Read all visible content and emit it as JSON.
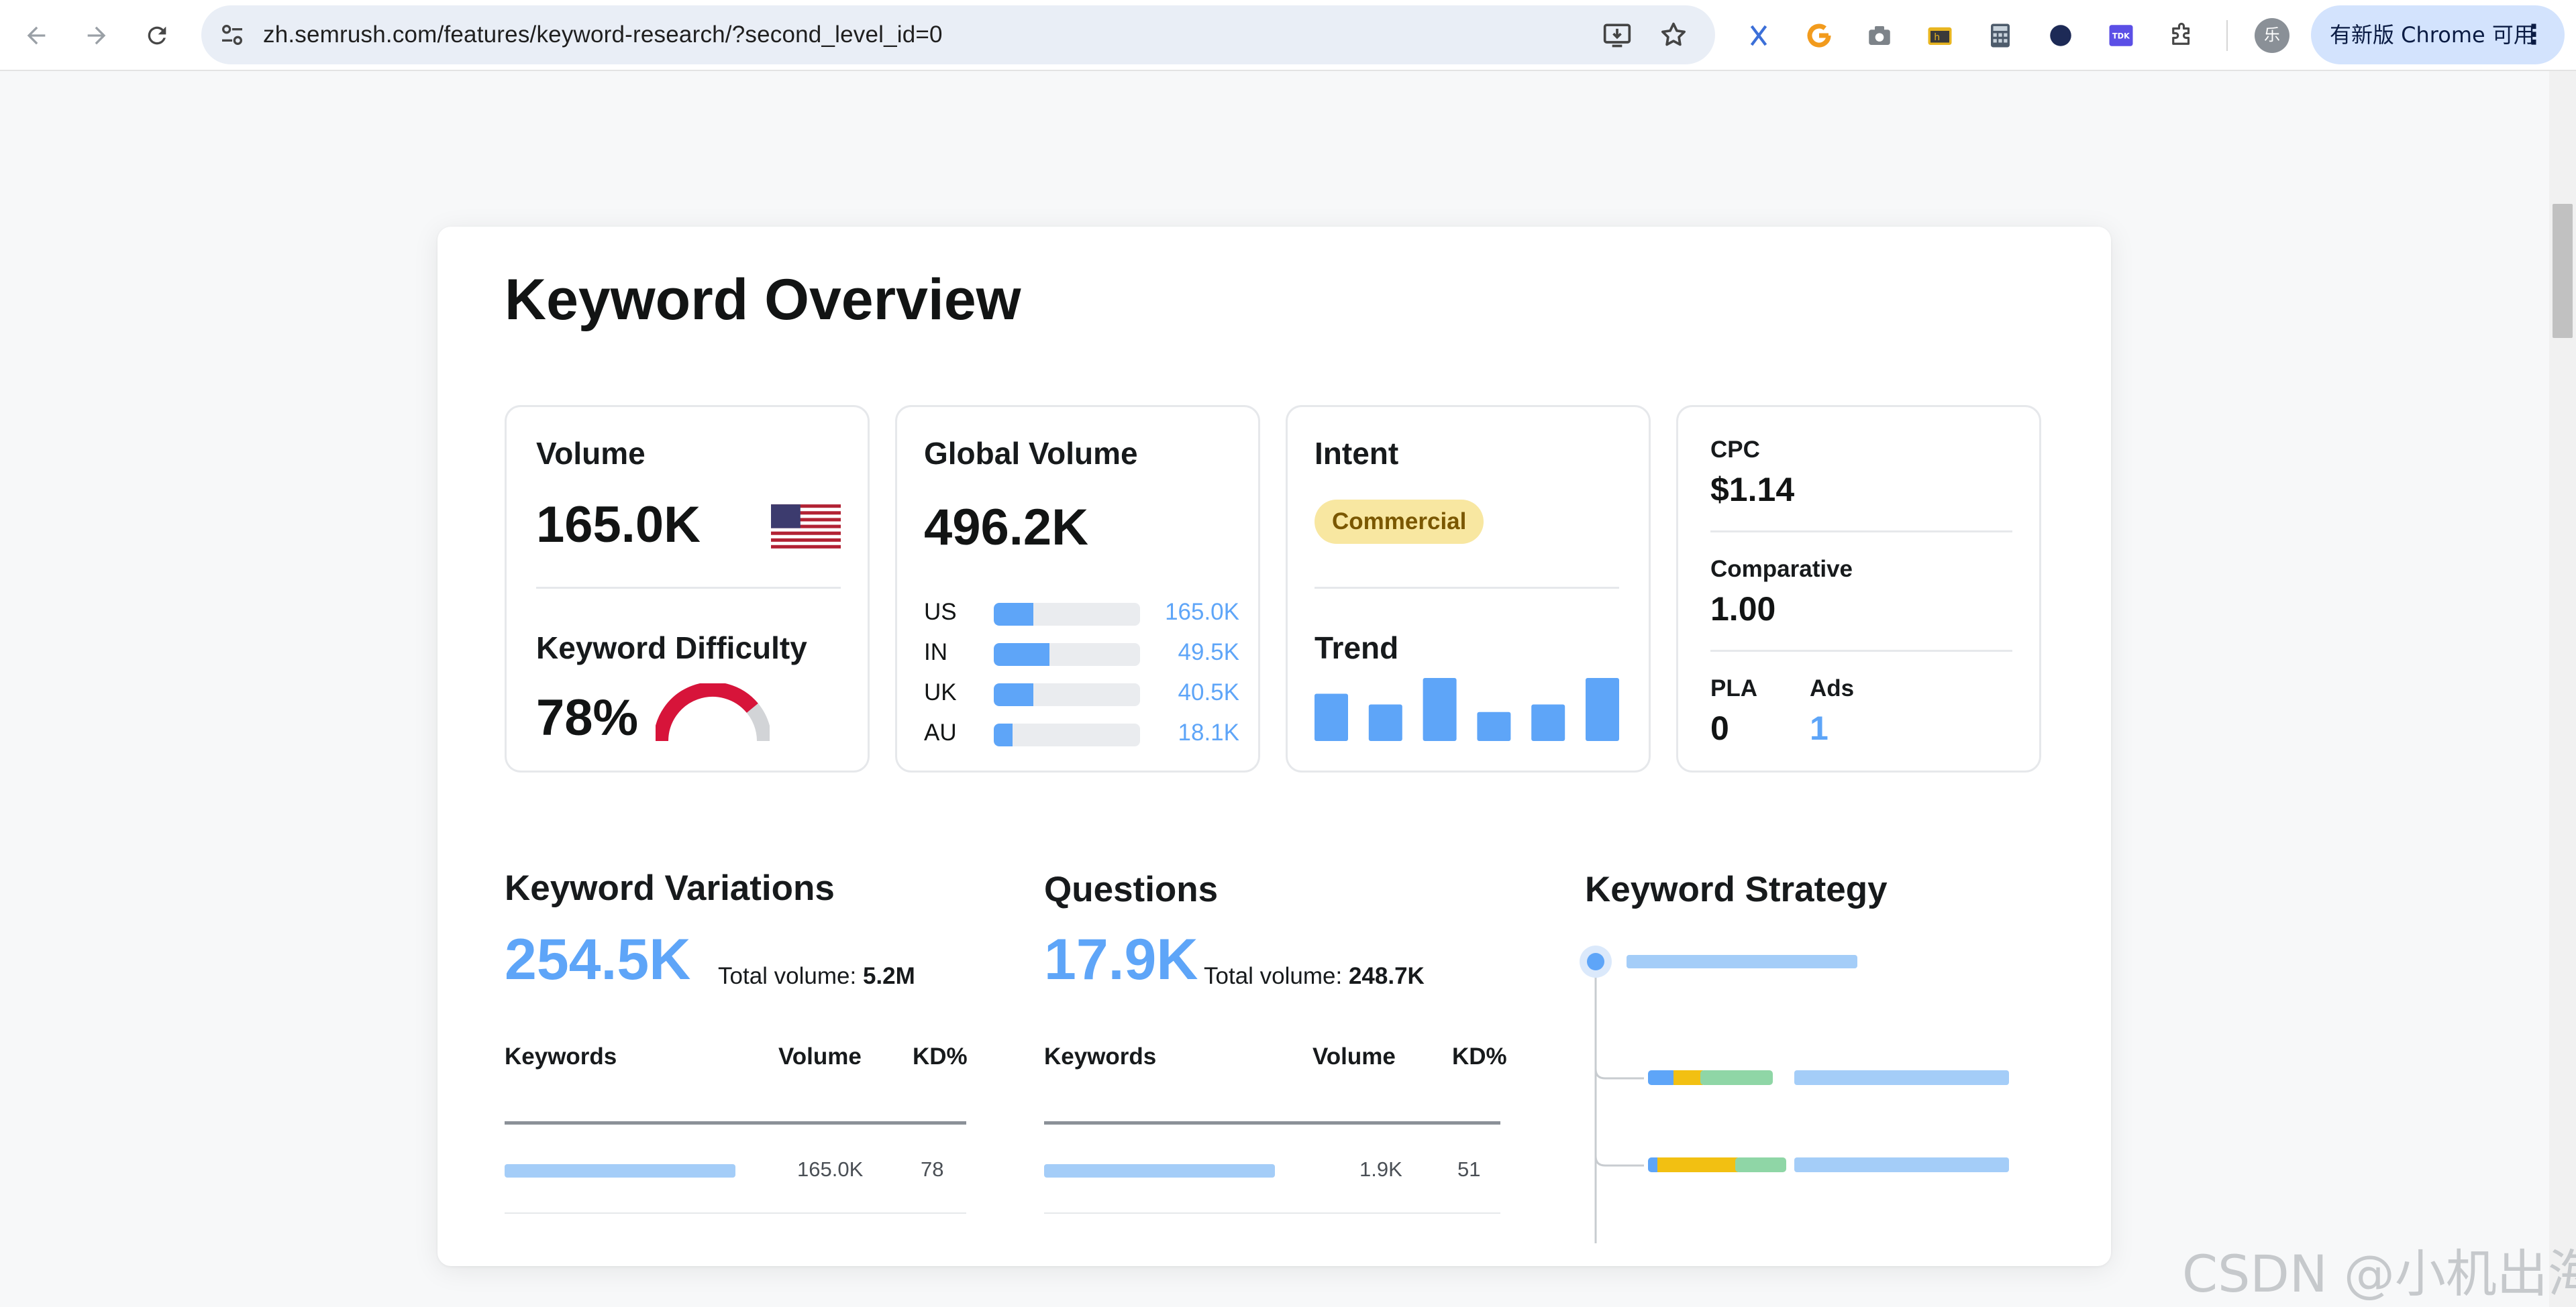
{
  "browser": {
    "url": "zh.semrush.com/features/keyword-research/?second_level_id=0",
    "avatar_label": "乐",
    "update_button_label": "有新版 Chrome 可用",
    "more_label": "⋮"
  },
  "overview": {
    "title": "Keyword Overview",
    "volume": {
      "label": "Volume",
      "value": "165.0K",
      "flag": "us-flag-icon"
    },
    "difficulty": {
      "label": "Keyword Difficulty",
      "value": "78%",
      "percent": 78
    },
    "global_volume": {
      "label": "Global Volume",
      "value": "496.2K",
      "rows": [
        {
          "country": "US",
          "value": "165.0K",
          "fraction": 0.27
        },
        {
          "country": "IN",
          "value": "49.5K",
          "fraction": 0.38
        },
        {
          "country": "UK",
          "value": "40.5K",
          "fraction": 0.27
        },
        {
          "country": "AU",
          "value": "18.1K",
          "fraction": 0.13
        }
      ]
    },
    "intent": {
      "label": "Intent",
      "badge": "Commercial",
      "badge_color": "#f8e7a1"
    },
    "trend": {
      "label": "Trend",
      "values": [
        0.75,
        0.58,
        1.0,
        0.46,
        0.58,
        1.0
      ]
    },
    "cpc": {
      "label": "CPC",
      "value": "$1.14"
    },
    "comparative": {
      "label": "Comparative",
      "value": "1.00"
    },
    "pla": {
      "label": "PLA",
      "value": "0"
    },
    "ads": {
      "label": "Ads",
      "value": "1"
    }
  },
  "variations": {
    "title": "Keyword Variations",
    "count": "254.5K",
    "total_label": "Total volume:",
    "total_value": "5.2M",
    "columns": [
      "Keywords",
      "Volume",
      "KD%"
    ],
    "row": {
      "volume": "165.0K",
      "kd": "78"
    }
  },
  "questions": {
    "title": "Questions",
    "count": "17.9K",
    "total_label": "Total volume:",
    "total_value": "248.7K",
    "columns": [
      "Keywords",
      "Volume",
      "KD%"
    ],
    "row": {
      "volume": "1.9K",
      "kd": "51"
    }
  },
  "strategy": {
    "title": "Keyword Strategy"
  },
  "watermark": "CSDN @小机出海",
  "colors": {
    "accent": "#5ea5f8",
    "gauge": "#d7143a",
    "light_blue": "#a4cdf8",
    "yellow": "#f2c012",
    "green": "#8fd6a6"
  }
}
